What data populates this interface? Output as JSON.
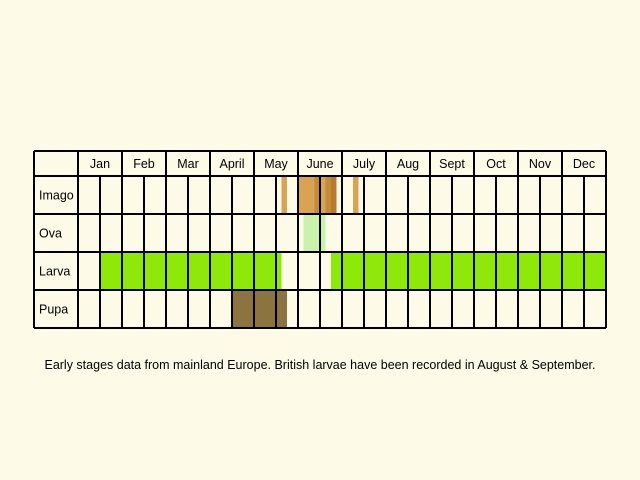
{
  "chart_data": {
    "type": "table",
    "months": [
      "Jan",
      "Feb",
      "Mar",
      "April",
      "May",
      "June",
      "July",
      "Aug",
      "Sept",
      "Oct",
      "Nov",
      "Dec"
    ],
    "columns_per_month": 2,
    "rows": [
      {
        "label": "Imago",
        "bars": [
          {
            "start": 9.25,
            "end": 9.5,
            "color": "#d9a354"
          },
          {
            "start": 10.0,
            "end": 10.75,
            "color": "#d9a354"
          },
          {
            "start": 10.75,
            "end": 11.0,
            "color": "#c48a3c"
          },
          {
            "start": 11.0,
            "end": 11.25,
            "color": "#d9a354"
          },
          {
            "start": 11.25,
            "end": 11.5,
            "color": "#c48a3c"
          },
          {
            "start": 11.5,
            "end": 11.75,
            "color": "#b97a2e"
          },
          {
            "start": 12.5,
            "end": 12.75,
            "color": "#d9a354"
          }
        ]
      },
      {
        "label": "Ova",
        "bars": [
          {
            "start": 10.25,
            "end": 11.25,
            "color": "#c9f2ad"
          }
        ]
      },
      {
        "label": "Larva",
        "bars": [
          {
            "start": 1.0,
            "end": 9.25,
            "color": "#8ee80a"
          },
          {
            "start": 11.5,
            "end": 24.0,
            "color": "#8ee80a"
          }
        ]
      },
      {
        "label": "Pupa",
        "bars": [
          {
            "start": 7.0,
            "end": 9.5,
            "color": "#8c7440"
          }
        ]
      }
    ]
  },
  "caption": "Early stages data from mainland Europe. British larvae have been recorded in August & September."
}
